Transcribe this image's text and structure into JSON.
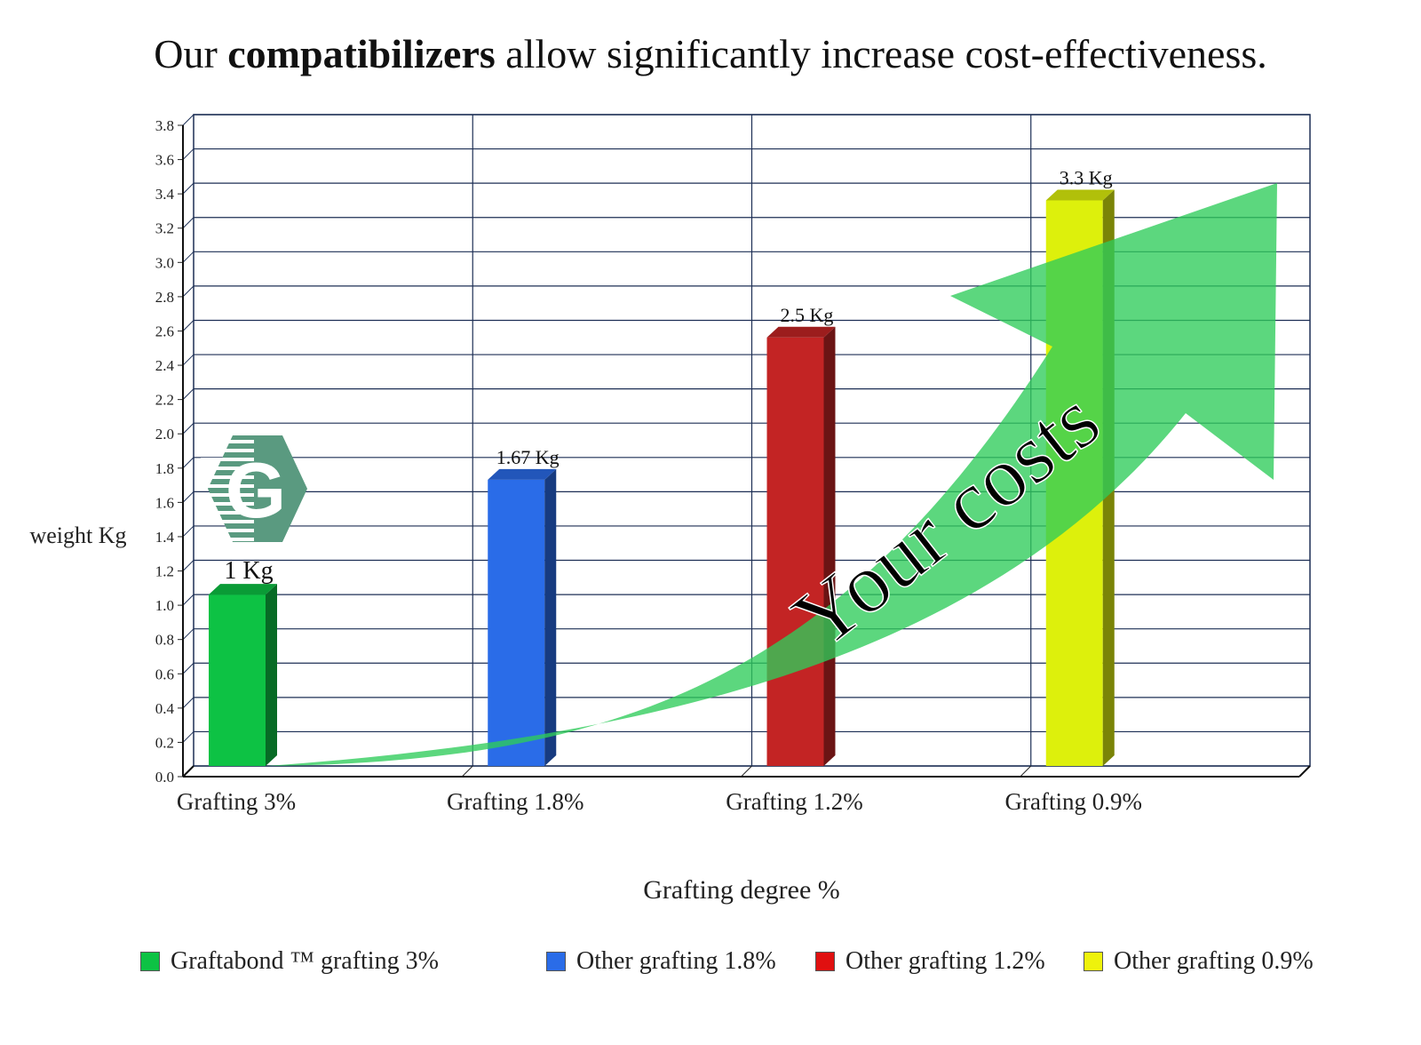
{
  "headline": {
    "prefix": "Our ",
    "emphasis": "compatibilizers",
    "suffix": " allow significantly increase cost-effectiveness."
  },
  "chart_data": {
    "type": "bar",
    "categories": [
      "Grafting 3%",
      "Grafting 1.8%",
      "Grafting 1.2%",
      "Grafting 0.9%"
    ],
    "values": [
      1.0,
      1.67,
      2.5,
      3.3
    ],
    "data_labels": [
      "1 Kg",
      "1.67 Kg",
      "2.5 Kg",
      "3.3 Kg"
    ],
    "colors": [
      "#0dc244",
      "#2a6ce8",
      "#c32424",
      "#ddf00c"
    ],
    "xlabel": "Grafting degree %",
    "ylabel": "weight Kg",
    "ylim": [
      0,
      3.8
    ],
    "ytick_step": 0.2,
    "yticks": [
      "0.0",
      "0.2",
      "0.4",
      "0.6",
      "0.8",
      "1.0",
      "1.2",
      "1.4",
      "1.6",
      "1.8",
      "2.0",
      "2.2",
      "2.4",
      "2.6",
      "2.8",
      "3.0",
      "3.2",
      "3.4",
      "3.6",
      "3.8"
    ],
    "grid": true,
    "legend_position": "bottom",
    "legend": [
      {
        "label": "Graftabond ™ grafting 3%",
        "color": "#0dc244"
      },
      {
        "label": "Other grafting 1.8%",
        "color": "#2a6ce8"
      },
      {
        "label": "Other grafting 1.2%",
        "color": "#e01010"
      },
      {
        "label": "Other grafting 0.9%",
        "color": "#eef20c"
      }
    ],
    "annotation": {
      "text": "Your costs",
      "shape": "curved-arrow",
      "color": "#2ecc5a"
    }
  },
  "logo": {
    "icon": "graftabond-g-logo-icon",
    "letter": "G",
    "color": "#5a9a80"
  }
}
